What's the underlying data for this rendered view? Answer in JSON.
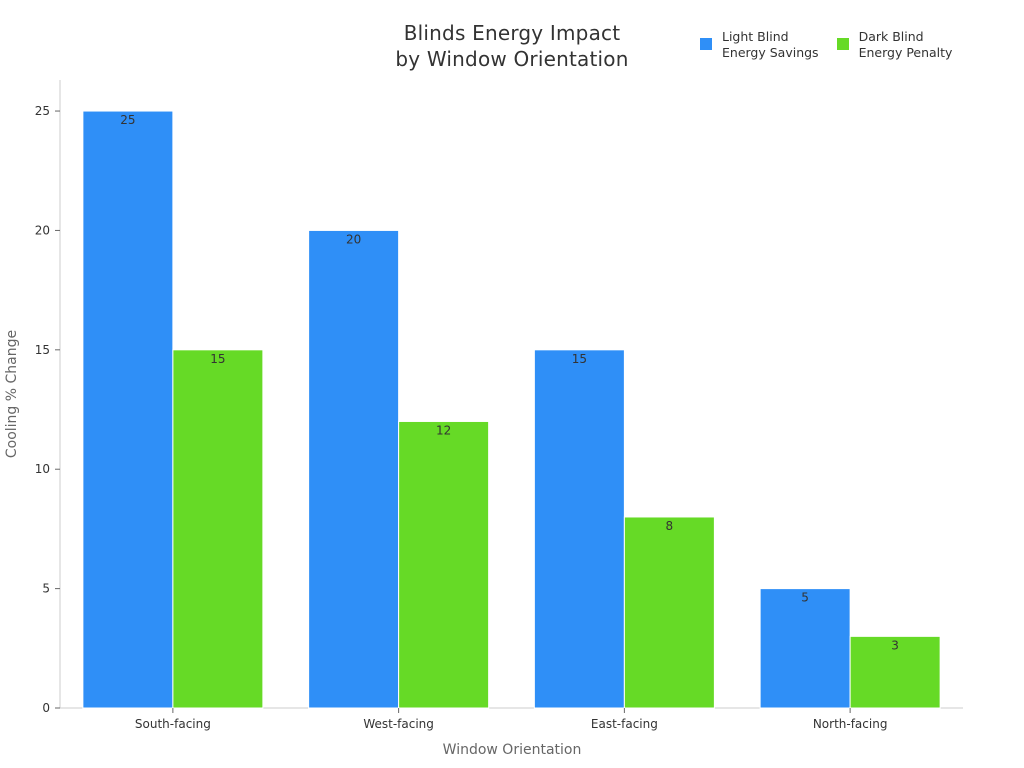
{
  "chart_data": {
    "type": "bar",
    "title_lines": [
      "Blinds Energy Impact",
      "by Window Orientation"
    ],
    "xlabel": "Window Orientation",
    "ylabel": "Cooling % Change",
    "categories": [
      "South-facing",
      "West-facing",
      "East-facing",
      "North-facing"
    ],
    "series": [
      {
        "name_lines": [
          "Light Blind",
          "Energy Savings"
        ],
        "color": "#2f8ff7",
        "values": [
          25,
          20,
          15,
          5
        ]
      },
      {
        "name_lines": [
          "Dark Blind",
          "Energy Penalty"
        ],
        "color": "#66da26",
        "values": [
          15,
          12,
          8,
          3
        ]
      }
    ],
    "ylim": [
      0,
      26.3
    ],
    "yticks": [
      0,
      5,
      10,
      15,
      20,
      25
    ],
    "grid": false,
    "legend_position": "top-right"
  }
}
